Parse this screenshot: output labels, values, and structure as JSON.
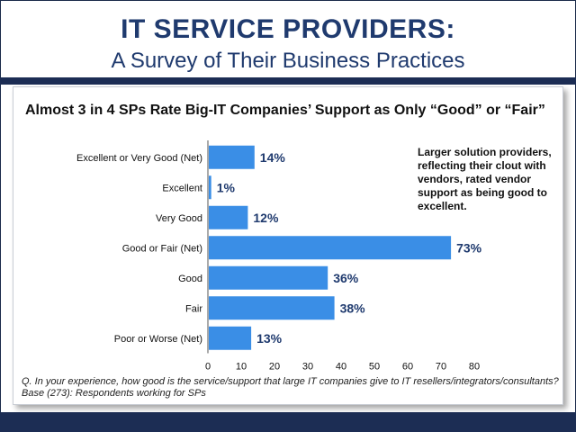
{
  "header": {
    "title": "IT SERVICE PROVIDERS:",
    "subtitle": "A Survey of Their Business Practices"
  },
  "callout": "Larger solution providers, reflecting their clout with vendors, rated vendor support as being good to excellent.",
  "footnote": {
    "question": "Q. In your experience, how good is the service/support that large IT companies give to IT resellers/integrators/consultants?",
    "base": "Base (273):  Respondents working for SPs"
  },
  "colors": {
    "bar": "#3a8ee6",
    "title": "#1f3a6e",
    "band": "#1c2d54"
  },
  "chart_data": {
    "type": "bar",
    "orientation": "horizontal",
    "title": "Almost 3 in 4 SPs Rate Big-IT Companies’ Support as Only “Good” or “Fair”",
    "categories": [
      "Excellent or Very Good (Net)",
      "Excellent",
      "Very Good",
      "Good or Fair (Net)",
      "Good",
      "Fair",
      "Poor or Worse (Net)"
    ],
    "values": [
      14,
      1,
      12,
      73,
      36,
      38,
      13
    ],
    "value_labels": [
      "14%",
      "1%",
      "12%",
      "73%",
      "36%",
      "38%",
      "13%"
    ],
    "xticks": [
      "0",
      "10",
      "20",
      "30",
      "40",
      "50",
      "60",
      "70",
      "80"
    ],
    "xlim": [
      0,
      80
    ],
    "grid": false
  }
}
